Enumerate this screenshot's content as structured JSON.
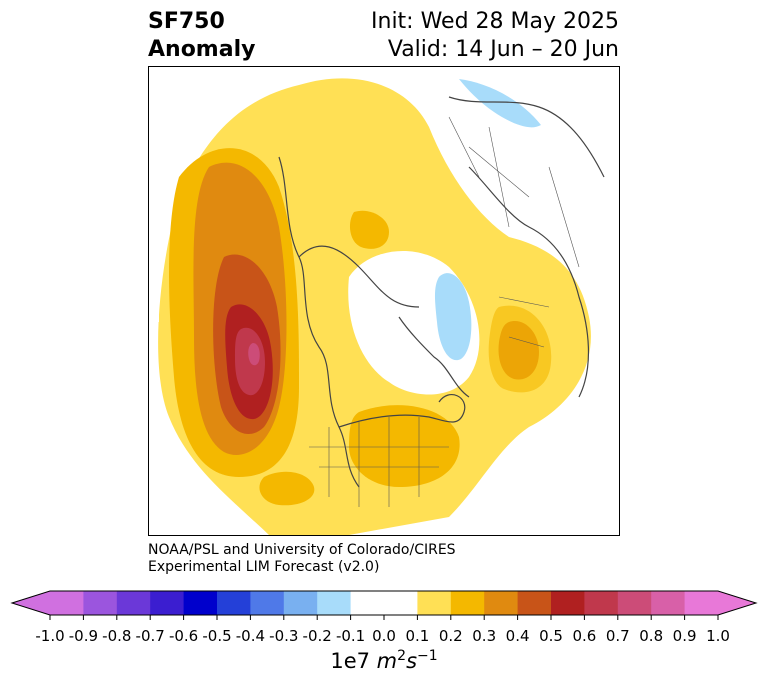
{
  "header": {
    "title_line1": "SF750",
    "title_line2": "Anomaly",
    "init_text": "Init: Wed 28 May 2025",
    "valid_text": "Valid: 14 Jun – 20 Jun"
  },
  "credit": {
    "line1": "NOAA/PSL and University of Colorado/CIRES",
    "line2": "Experimental LIM Forecast (v2.0)"
  },
  "colorbar": {
    "ticks": [
      "-1.0",
      "-0.9",
      "-0.8",
      "-0.7",
      "-0.6",
      "-0.5",
      "-0.4",
      "-0.3",
      "-0.2",
      "-0.1",
      "0.0",
      "0.1",
      "0.2",
      "0.3",
      "0.4",
      "0.5",
      "0.6",
      "0.7",
      "0.8",
      "0.9",
      "1.0"
    ],
    "colors": [
      "#9b55de",
      "#6b38d8",
      "#3b1ed0",
      "#0000cc",
      "#2440d8",
      "#4f79e8",
      "#79b0f0",
      "#a8dcfa",
      "#ffffff",
      "#ffe055",
      "#f4b800",
      "#e08a10",
      "#c85418",
      "#b02020",
      "#c0384c",
      "#cc4c78",
      "#d860a8"
    ],
    "extend_min_color": "#d070e0",
    "extend_max_color": "#e878d8",
    "unit_prefix": "1e7",
    "unit_m": "m",
    "unit_m_exp": "2",
    "unit_s": "s",
    "unit_s_exp": "−1"
  }
}
